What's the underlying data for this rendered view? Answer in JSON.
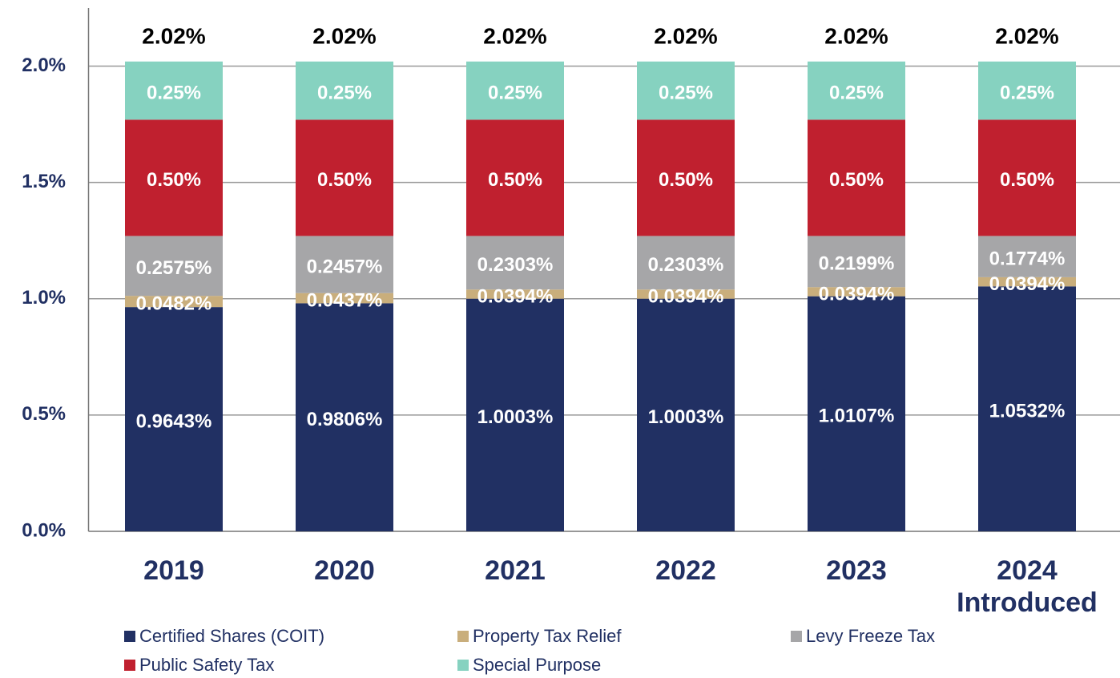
{
  "chart_data": {
    "type": "bar",
    "stacked": true,
    "categories": [
      "2019",
      "2020",
      "2021",
      "2022",
      "2023",
      "2024 Introduced"
    ],
    "series": [
      {
        "name": "Certified Shares (COIT)",
        "color": "#213063",
        "values": [
          0.9643,
          0.9806,
          1.0003,
          1.0003,
          1.0107,
          1.0532
        ],
        "value_labels": [
          "0.9643%",
          "0.9806%",
          "1.0003%",
          "1.0003%",
          "1.0107%",
          "1.0532%"
        ]
      },
      {
        "name": "Property Tax Relief",
        "color": "#c9ae7c",
        "values": [
          0.0482,
          0.0437,
          0.0394,
          0.0394,
          0.0394,
          0.0394
        ],
        "value_labels": [
          "0.0482%",
          "0.0437%",
          "0.0394%",
          "0.0394%",
          "0.0394%",
          "0.0394%"
        ]
      },
      {
        "name": "Levy Freeze Tax",
        "color": "#a6a6a8",
        "values": [
          0.2575,
          0.2457,
          0.2303,
          0.2303,
          0.2199,
          0.1774
        ],
        "value_labels": [
          "0.2575%",
          "0.2457%",
          "0.2303%",
          "0.2303%",
          "0.2199%",
          "0.1774%"
        ]
      },
      {
        "name": "Public Safety Tax",
        "color": "#c0202f",
        "values": [
          0.5,
          0.5,
          0.5,
          0.5,
          0.5,
          0.5
        ],
        "value_labels": [
          "0.50%",
          "0.50%",
          "0.50%",
          "0.50%",
          "0.50%",
          "0.50%"
        ]
      },
      {
        "name": "Special Purpose",
        "color": "#86d2c0",
        "values": [
          0.25,
          0.25,
          0.25,
          0.25,
          0.25,
          0.25
        ],
        "value_labels": [
          "0.25%",
          "0.25%",
          "0.25%",
          "0.25%",
          "0.25%",
          "0.25%"
        ]
      }
    ],
    "totals": [
      2.02,
      2.02,
      2.02,
      2.02,
      2.02,
      2.02
    ],
    "total_labels": [
      "2.02%",
      "2.02%",
      "2.02%",
      "2.02%",
      "2.02%",
      "2.02%"
    ],
    "ylim": [
      0,
      2.25
    ],
    "yticks": [
      {
        "value": 0,
        "label": "0.0%"
      },
      {
        "value": 0.5,
        "label": "0.5%"
      },
      {
        "value": 1,
        "label": "1.0%"
      },
      {
        "value": 1.5,
        "label": "1.5%"
      },
      {
        "value": 2,
        "label": "2.0%"
      }
    ],
    "grid": true,
    "legend": "bottom"
  }
}
